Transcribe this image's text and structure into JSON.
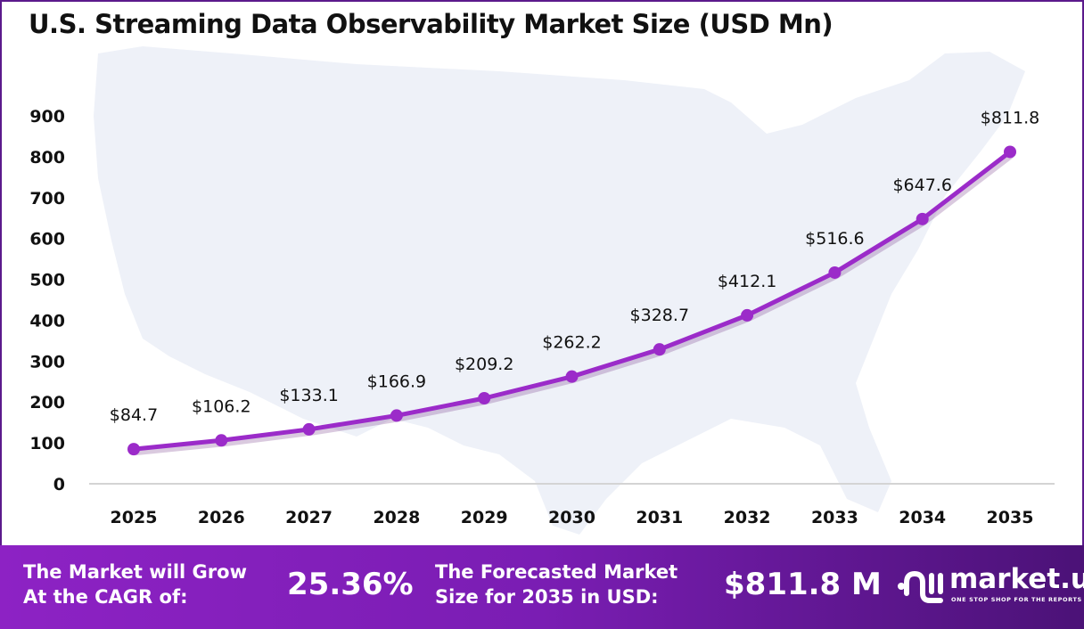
{
  "chart_data": {
    "type": "line",
    "title": "U.S. Streaming Data Observability Market Size (USD Mn)",
    "categories": [
      "2025",
      "2026",
      "2027",
      "2028",
      "2029",
      "2030",
      "2031",
      "2032",
      "2033",
      "2034",
      "2035"
    ],
    "values": [
      84.7,
      106.2,
      133.1,
      166.9,
      209.2,
      262.2,
      328.7,
      412.1,
      516.6,
      647.6,
      811.8
    ],
    "data_labels": [
      "$84.7",
      "$106.2",
      "$133.1",
      "$166.9",
      "$209.2",
      "$262.2",
      "$328.7",
      "$412.1",
      "$516.6",
      "$647.6",
      "$811.8"
    ],
    "ylim": [
      0,
      900
    ],
    "yticks": [
      "0",
      "100",
      "200",
      "300",
      "400",
      "500",
      "600",
      "700",
      "800",
      "900"
    ],
    "xlabel": "",
    "ylabel": "",
    "grid": false,
    "legend": "none",
    "line_color": "#9b2bc9"
  },
  "footer": {
    "cagr_label": [
      "The Market will Grow",
      "At the CAGR of:"
    ],
    "cagr_value": "25.36%",
    "forecast_label": [
      "The Forecasted Market",
      "Size for 2035 in USD:"
    ],
    "forecast_value": "$811.8 M",
    "logo_name": "market.us",
    "logo_tagline": "ONE STOP SHOP FOR THE REPORTS"
  }
}
